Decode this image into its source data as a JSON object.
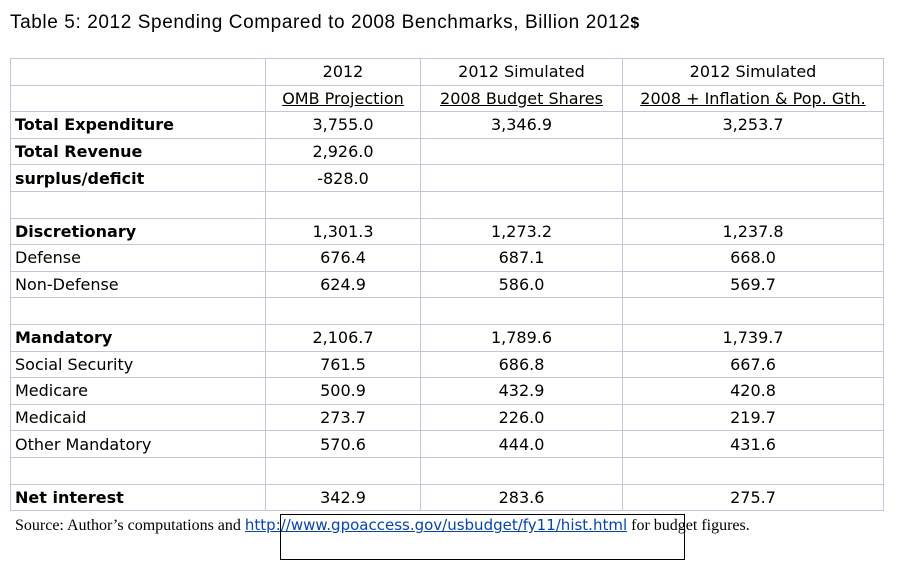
{
  "title": "Table 5: 2012 Spending Compared to 2008 Benchmarks, Billion 2012",
  "title_suffix": "$",
  "header": {
    "col1": [
      "2012",
      "OMB Projection"
    ],
    "col2": [
      "2012 Simulated",
      "2008 Budget Shares"
    ],
    "col3": [
      "2012 Simulated",
      "2008 + Inflation & Pop. Gth."
    ]
  },
  "rows": [
    {
      "label": "Total Expenditure",
      "c1": "3,755.0",
      "c2": "3,346.9",
      "c3": "3,253.7",
      "bold": true
    },
    {
      "label": "Total Revenue",
      "c1": "2,926.0",
      "c2": "",
      "c3": "",
      "bold": true
    },
    {
      "label": "surplus/deficit",
      "c1": "-828.0",
      "c2": "",
      "c3": "",
      "bold": true
    },
    {
      "label": "",
      "c1": "",
      "c2": "",
      "c3": "",
      "bold": false
    },
    {
      "label": "Discretionary",
      "c1": "1,301.3",
      "c2": "1,273.2",
      "c3": "1,237.8",
      "bold": true
    },
    {
      "label": "Defense",
      "c1": "676.4",
      "c2": "687.1",
      "c3": "668.0",
      "bold": false
    },
    {
      "label": "Non-Defense",
      "c1": "624.9",
      "c2": "586.0",
      "c3": "569.7",
      "bold": false
    },
    {
      "label": "",
      "c1": "",
      "c2": "",
      "c3": "",
      "bold": false
    },
    {
      "label": "Mandatory",
      "c1": "2,106.7",
      "c2": "1,789.6",
      "c3": "1,739.7",
      "bold": true
    },
    {
      "label": "Social Security",
      "c1": "761.5",
      "c2": "686.8",
      "c3": "667.6",
      "bold": false
    },
    {
      "label": "Medicare",
      "c1": "500.9",
      "c2": "432.9",
      "c3": "420.8",
      "bold": false
    },
    {
      "label": "Medicaid",
      "c1": "273.7",
      "c2": "226.0",
      "c3": "219.7",
      "bold": false
    },
    {
      "label": "Other Mandatory",
      "c1": "570.6",
      "c2": "444.0",
      "c3": "431.6",
      "bold": false
    },
    {
      "label": "",
      "c1": "",
      "c2": "",
      "c3": "",
      "bold": false
    },
    {
      "label": "Net interest",
      "c1": "342.9",
      "c2": "283.6",
      "c3": "275.7",
      "bold": true
    }
  ],
  "source": {
    "prefix": "Source: Author’s computations and ",
    "link": "http://www.gpoaccess.gov/usbudget/fy11/hist.html",
    "suffix": " for budget figures."
  }
}
